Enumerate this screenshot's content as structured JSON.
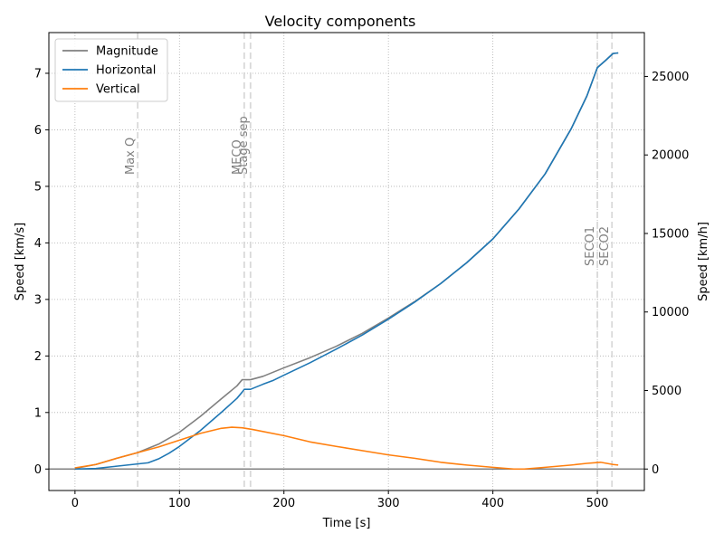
{
  "chart_data": {
    "type": "line",
    "title": "Velocity components",
    "xlabel": "Time [s]",
    "ylabel": "Speed [km/s]",
    "ylabel_right": "Speed [km/h]",
    "xlim": [
      -25,
      545
    ],
    "ylim": [
      -0.38,
      7.72
    ],
    "ylim_right_kmh": [
      -1368,
      27792
    ],
    "x_ticks": [
      0,
      100,
      200,
      300,
      400,
      500
    ],
    "y_ticks": [
      0,
      1,
      2,
      3,
      4,
      5,
      6,
      7
    ],
    "y_ticks_right": [
      0,
      5000,
      10000,
      15000,
      20000,
      25000
    ],
    "grid": true,
    "legend_position": "top-left",
    "events": [
      {
        "label": "Max Q",
        "t": 60
      },
      {
        "label": "MECO",
        "t": 162
      },
      {
        "label": "Stage sep",
        "t": 168
      },
      {
        "label": "SECO1",
        "t": 500
      },
      {
        "label": "SECO2",
        "t": 514
      }
    ],
    "series": [
      {
        "name": "Magnitude",
        "color": "#808080",
        "points": [
          [
            0,
            0.01
          ],
          [
            20,
            0.08
          ],
          [
            40,
            0.19
          ],
          [
            60,
            0.29
          ],
          [
            80,
            0.44
          ],
          [
            100,
            0.65
          ],
          [
            120,
            0.93
          ],
          [
            140,
            1.24
          ],
          [
            155,
            1.47
          ],
          [
            160,
            1.58
          ],
          [
            168,
            1.58
          ],
          [
            180,
            1.64
          ],
          [
            200,
            1.79
          ],
          [
            225,
            1.97
          ],
          [
            250,
            2.17
          ],
          [
            275,
            2.4
          ],
          [
            300,
            2.67
          ],
          [
            325,
            2.96
          ],
          [
            350,
            3.28
          ],
          [
            375,
            3.65
          ],
          [
            400,
            4.07
          ],
          [
            425,
            4.6
          ],
          [
            450,
            5.22
          ],
          [
            475,
            6.02
          ],
          [
            490,
            6.6
          ],
          [
            500,
            7.1
          ],
          [
            508,
            7.23
          ],
          [
            515,
            7.35
          ],
          [
            520,
            7.36
          ]
        ]
      },
      {
        "name": "Horizontal",
        "color": "#1f77b4",
        "points": [
          [
            0,
            0.0
          ],
          [
            20,
            0.01
          ],
          [
            40,
            0.05
          ],
          [
            60,
            0.09
          ],
          [
            70,
            0.11
          ],
          [
            80,
            0.18
          ],
          [
            90,
            0.28
          ],
          [
            100,
            0.4
          ],
          [
            120,
            0.68
          ],
          [
            140,
            1.0
          ],
          [
            155,
            1.25
          ],
          [
            160,
            1.36
          ],
          [
            162,
            1.41
          ],
          [
            168,
            1.41
          ],
          [
            180,
            1.5
          ],
          [
            190,
            1.57
          ],
          [
            200,
            1.66
          ],
          [
            225,
            1.88
          ],
          [
            250,
            2.12
          ],
          [
            275,
            2.37
          ],
          [
            300,
            2.65
          ],
          [
            325,
            2.95
          ],
          [
            350,
            3.28
          ],
          [
            375,
            3.65
          ],
          [
            400,
            4.07
          ],
          [
            425,
            4.6
          ],
          [
            450,
            5.22
          ],
          [
            475,
            6.02
          ],
          [
            490,
            6.6
          ],
          [
            500,
            7.1
          ],
          [
            508,
            7.23
          ],
          [
            515,
            7.35
          ],
          [
            520,
            7.36
          ]
        ]
      },
      {
        "name": "Vertical",
        "color": "#ff7f0e",
        "points": [
          [
            0,
            0.02
          ],
          [
            20,
            0.08
          ],
          [
            40,
            0.19
          ],
          [
            60,
            0.29
          ],
          [
            80,
            0.39
          ],
          [
            100,
            0.51
          ],
          [
            120,
            0.63
          ],
          [
            140,
            0.72
          ],
          [
            150,
            0.74
          ],
          [
            160,
            0.73
          ],
          [
            170,
            0.7
          ],
          [
            200,
            0.59
          ],
          [
            225,
            0.48
          ],
          [
            250,
            0.4
          ],
          [
            300,
            0.25
          ],
          [
            325,
            0.19
          ],
          [
            350,
            0.12
          ],
          [
            375,
            0.07
          ],
          [
            400,
            0.03
          ],
          [
            420,
            0.0
          ],
          [
            430,
            0.0
          ],
          [
            450,
            0.03
          ],
          [
            475,
            0.07
          ],
          [
            490,
            0.1
          ],
          [
            503,
            0.12
          ],
          [
            515,
            0.08
          ],
          [
            520,
            0.07
          ]
        ]
      }
    ]
  }
}
